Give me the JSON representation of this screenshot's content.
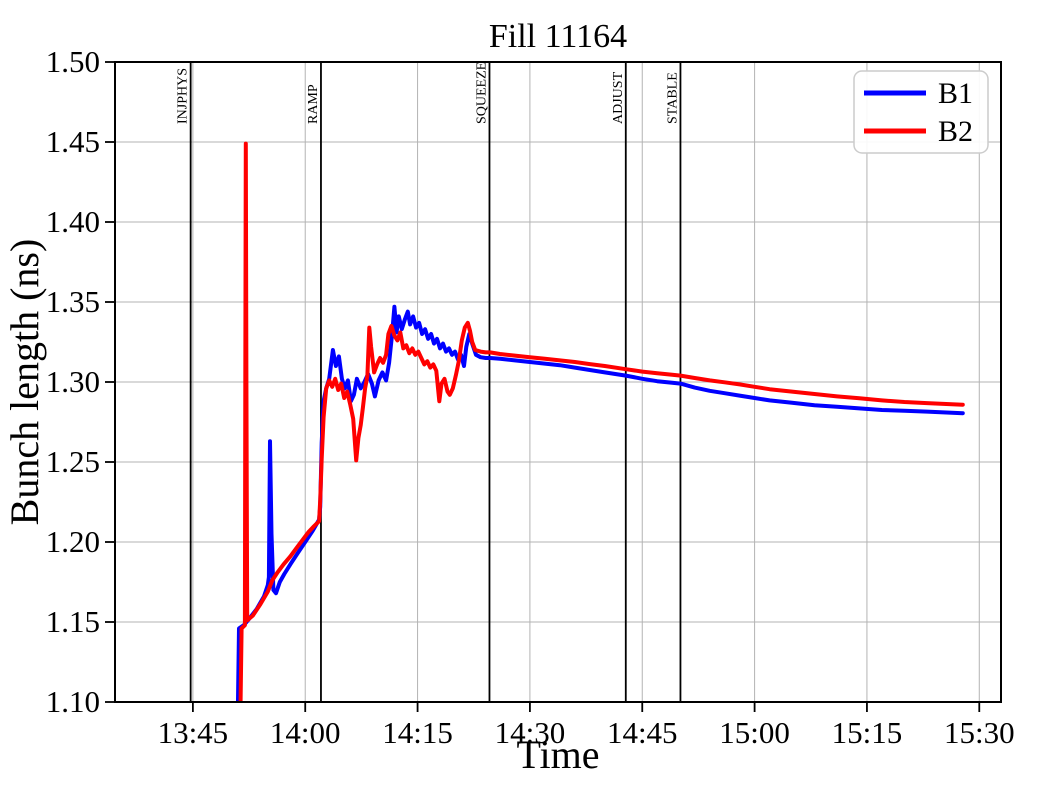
{
  "chart_data": {
    "type": "line",
    "title": "Fill 11164",
    "xlabel": "Time",
    "ylabel": "Bunch length (ns)",
    "xlim": [
      34.6,
      152.9
    ],
    "ylim": [
      1.1,
      1.5
    ],
    "grid": true,
    "legend_position": "upper right",
    "x_unit": "minutes after 13:00",
    "xticks": [
      {
        "t": 45,
        "label": "13:45"
      },
      {
        "t": 60,
        "label": "14:00"
      },
      {
        "t": 75,
        "label": "14:15"
      },
      {
        "t": 90,
        "label": "14:30"
      },
      {
        "t": 105,
        "label": "14:45"
      },
      {
        "t": 120,
        "label": "15:00"
      },
      {
        "t": 135,
        "label": "15:15"
      },
      {
        "t": 150,
        "label": "15:30"
      }
    ],
    "yticks": [
      {
        "v": 1.1,
        "label": "1.10"
      },
      {
        "v": 1.15,
        "label": "1.15"
      },
      {
        "v": 1.2,
        "label": "1.20"
      },
      {
        "v": 1.25,
        "label": "1.25"
      },
      {
        "v": 1.3,
        "label": "1.30"
      },
      {
        "v": 1.35,
        "label": "1.35"
      },
      {
        "v": 1.4,
        "label": "1.40"
      },
      {
        "v": 1.45,
        "label": "1.45"
      },
      {
        "v": 1.5,
        "label": "1.50"
      }
    ],
    "events": [
      {
        "label": "INJPHYS",
        "t": 44.7
      },
      {
        "label": "RAMP",
        "t": 62.1
      },
      {
        "label": "SQUEEZE",
        "t": 84.6
      },
      {
        "label": "ADJUST",
        "t": 102.8
      },
      {
        "label": "STABLE",
        "t": 110.1
      }
    ],
    "colors": {
      "b1": "#0000ff",
      "b2": "#ff0000",
      "grid": "#b3b3b3",
      "event_line": "#000000",
      "spine": "#000000",
      "legend_border": "#cccccc"
    },
    "series": [
      {
        "name": "B1",
        "color": "#0000ff",
        "points": [
          [
            51.0,
            1.092
          ],
          [
            51.15,
            1.146
          ],
          [
            51.8,
            1.148
          ],
          [
            52.5,
            1.152
          ],
          [
            53.5,
            1.158
          ],
          [
            54.5,
            1.166
          ],
          [
            55.0,
            1.173
          ],
          [
            55.15,
            1.178
          ],
          [
            55.3,
            1.263
          ],
          [
            55.5,
            1.205
          ],
          [
            55.75,
            1.17
          ],
          [
            56.1,
            1.168
          ],
          [
            56.6,
            1.175
          ],
          [
            57.2,
            1.18
          ],
          [
            58.0,
            1.186
          ],
          [
            59.0,
            1.193
          ],
          [
            60.0,
            1.2
          ],
          [
            61.0,
            1.207
          ],
          [
            61.85,
            1.214
          ],
          [
            62.0,
            1.222
          ],
          [
            62.2,
            1.262
          ],
          [
            62.45,
            1.288
          ],
          [
            62.8,
            1.296
          ],
          [
            63.2,
            1.302
          ],
          [
            63.7,
            1.32
          ],
          [
            64.1,
            1.31
          ],
          [
            64.5,
            1.316
          ],
          [
            64.9,
            1.302
          ],
          [
            65.3,
            1.296
          ],
          [
            65.7,
            1.301
          ],
          [
            66.1,
            1.288
          ],
          [
            66.5,
            1.292
          ],
          [
            66.9,
            1.302
          ],
          [
            67.4,
            1.296
          ],
          [
            67.9,
            1.3
          ],
          [
            68.4,
            1.305
          ],
          [
            68.9,
            1.299
          ],
          [
            69.3,
            1.291
          ],
          [
            69.8,
            1.301
          ],
          [
            70.3,
            1.306
          ],
          [
            70.8,
            1.301
          ],
          [
            71.2,
            1.312
          ],
          [
            71.6,
            1.33
          ],
          [
            71.9,
            1.347
          ],
          [
            72.2,
            1.331
          ],
          [
            72.5,
            1.341
          ],
          [
            72.9,
            1.333
          ],
          [
            73.3,
            1.339
          ],
          [
            73.7,
            1.344
          ],
          [
            74.0,
            1.336
          ],
          [
            74.4,
            1.341
          ],
          [
            74.8,
            1.334
          ],
          [
            75.2,
            1.337
          ],
          [
            75.6,
            1.33
          ],
          [
            76.0,
            1.333
          ],
          [
            76.4,
            1.327
          ],
          [
            76.8,
            1.33
          ],
          [
            77.2,
            1.324
          ],
          [
            77.6,
            1.327
          ],
          [
            78.0,
            1.321
          ],
          [
            78.4,
            1.324
          ],
          [
            78.8,
            1.319
          ],
          [
            79.2,
            1.321
          ],
          [
            79.6,
            1.317
          ],
          [
            80.0,
            1.319
          ],
          [
            80.4,
            1.314
          ],
          [
            80.8,
            1.317
          ],
          [
            81.2,
            1.31
          ],
          [
            81.5,
            1.322
          ],
          [
            81.9,
            1.33
          ],
          [
            82.3,
            1.324
          ],
          [
            82.8,
            1.317
          ],
          [
            83.4,
            1.3155
          ],
          [
            84.1,
            1.315
          ],
          [
            84.7,
            1.315
          ],
          [
            86,
            1.3145
          ],
          [
            88,
            1.3135
          ],
          [
            90,
            1.3125
          ],
          [
            92,
            1.3115
          ],
          [
            94,
            1.3105
          ],
          [
            96,
            1.309
          ],
          [
            98,
            1.3075
          ],
          [
            100,
            1.306
          ],
          [
            102.8,
            1.304
          ],
          [
            105,
            1.302
          ],
          [
            107,
            1.3005
          ],
          [
            109,
            1.2995
          ],
          [
            110.1,
            1.299
          ],
          [
            112,
            1.2965
          ],
          [
            114,
            1.2945
          ],
          [
            116,
            1.293
          ],
          [
            118,
            1.2915
          ],
          [
            120,
            1.29
          ],
          [
            122,
            1.2885
          ],
          [
            125,
            1.287
          ],
          [
            128,
            1.2855
          ],
          [
            131,
            1.2845
          ],
          [
            134,
            1.2835
          ],
          [
            137,
            1.2825
          ],
          [
            140,
            1.282
          ],
          [
            143,
            1.2815
          ],
          [
            147.8,
            1.2805
          ]
        ]
      },
      {
        "name": "B2",
        "color": "#ff0000",
        "points": [
          [
            51.35,
            1.092
          ],
          [
            51.5,
            1.146
          ],
          [
            51.95,
            1.148
          ],
          [
            52.0,
            1.3
          ],
          [
            52.07,
            1.449
          ],
          [
            52.15,
            1.3
          ],
          [
            52.25,
            1.151
          ],
          [
            53.0,
            1.154
          ],
          [
            54.0,
            1.161
          ],
          [
            55.0,
            1.169
          ],
          [
            55.6,
            1.176
          ],
          [
            56.3,
            1.181
          ],
          [
            57.1,
            1.186
          ],
          [
            58.0,
            1.191
          ],
          [
            58.8,
            1.196
          ],
          [
            59.6,
            1.201
          ],
          [
            60.4,
            1.206
          ],
          [
            61.2,
            1.21
          ],
          [
            61.85,
            1.213
          ],
          [
            62.0,
            1.226
          ],
          [
            62.2,
            1.252
          ],
          [
            62.45,
            1.278
          ],
          [
            62.8,
            1.296
          ],
          [
            63.2,
            1.301
          ],
          [
            63.6,
            1.297
          ],
          [
            64.0,
            1.302
          ],
          [
            64.4,
            1.295
          ],
          [
            64.8,
            1.299
          ],
          [
            65.2,
            1.29
          ],
          [
            65.6,
            1.294
          ],
          [
            66.0,
            1.286
          ],
          [
            66.4,
            1.277
          ],
          [
            66.8,
            1.251
          ],
          [
            67.1,
            1.265
          ],
          [
            67.4,
            1.273
          ],
          [
            67.7,
            1.284
          ],
          [
            68.0,
            1.296
          ],
          [
            68.3,
            1.304
          ],
          [
            68.55,
            1.334
          ],
          [
            68.8,
            1.322
          ],
          [
            69.2,
            1.306
          ],
          [
            69.6,
            1.311
          ],
          [
            70.0,
            1.315
          ],
          [
            70.4,
            1.312
          ],
          [
            70.8,
            1.317
          ],
          [
            71.1,
            1.33
          ],
          [
            71.5,
            1.335
          ],
          [
            71.9,
            1.329
          ],
          [
            72.3,
            1.326
          ],
          [
            72.7,
            1.331
          ],
          [
            73.1,
            1.321
          ],
          [
            73.5,
            1.323
          ],
          [
            73.9,
            1.318
          ],
          [
            74.3,
            1.321
          ],
          [
            74.7,
            1.317
          ],
          [
            75.1,
            1.319
          ],
          [
            75.5,
            1.315
          ],
          [
            75.9,
            1.311
          ],
          [
            76.3,
            1.313
          ],
          [
            76.7,
            1.309
          ],
          [
            77.1,
            1.311
          ],
          [
            77.5,
            1.307
          ],
          [
            77.9,
            1.288
          ],
          [
            78.2,
            1.299
          ],
          [
            78.6,
            1.302
          ],
          [
            79.0,
            1.294
          ],
          [
            79.3,
            1.292
          ],
          [
            79.7,
            1.296
          ],
          [
            80.1,
            1.304
          ],
          [
            80.5,
            1.313
          ],
          [
            80.9,
            1.326
          ],
          [
            81.3,
            1.334
          ],
          [
            81.7,
            1.337
          ],
          [
            82.0,
            1.332
          ],
          [
            82.3,
            1.325
          ],
          [
            82.7,
            1.32
          ],
          [
            83.4,
            1.319
          ],
          [
            84.1,
            1.3185
          ],
          [
            84.7,
            1.3185
          ],
          [
            86,
            1.3175
          ],
          [
            88,
            1.3165
          ],
          [
            90,
            1.3155
          ],
          [
            92,
            1.3145
          ],
          [
            94,
            1.3135
          ],
          [
            96,
            1.3125
          ],
          [
            98,
            1.3112
          ],
          [
            100,
            1.31
          ],
          [
            102.8,
            1.308
          ],
          [
            105,
            1.3065
          ],
          [
            107,
            1.3055
          ],
          [
            109,
            1.3045
          ],
          [
            110.1,
            1.304
          ],
          [
            112,
            1.3025
          ],
          [
            114,
            1.301
          ],
          [
            116,
            1.2998
          ],
          [
            118,
            1.2985
          ],
          [
            120,
            1.297
          ],
          [
            122,
            1.2955
          ],
          [
            125,
            1.294
          ],
          [
            128,
            1.2925
          ],
          [
            131,
            1.291
          ],
          [
            134,
            1.2898
          ],
          [
            137,
            1.2885
          ],
          [
            140,
            1.2875
          ],
          [
            143,
            1.2868
          ],
          [
            147.8,
            1.2858
          ]
        ]
      }
    ]
  }
}
